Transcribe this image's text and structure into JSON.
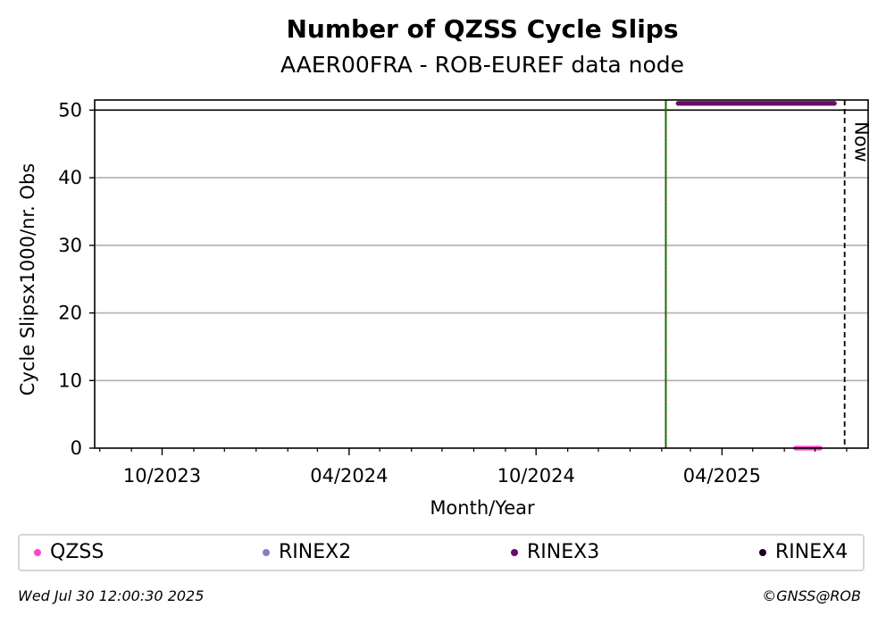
{
  "chart_data": {
    "type": "scatter",
    "title": "Number of QZSS Cycle Slips",
    "subtitle": "AAER00FRA - ROB-EUREF data node",
    "xlabel": "Month/Year",
    "ylabel": "Cycle Slipsx1000/nr. Obs",
    "xlim": [
      "2023-07-27",
      "2025-08-22"
    ],
    "ylim": [
      0,
      51.5
    ],
    "y_ticks": [
      0,
      10,
      20,
      30,
      40,
      50
    ],
    "x_ticks": [
      {
        "date": "2023-10-01",
        "label": "10/2023"
      },
      {
        "date": "2024-04-01",
        "label": "04/2024"
      },
      {
        "date": "2024-10-01",
        "label": "10/2024"
      },
      {
        "date": "2025-04-01",
        "label": "04/2025"
      }
    ],
    "x_minor_ticks": [
      "2023-08-01",
      "2023-09-01",
      "2023-11-01",
      "2023-12-01",
      "2024-01-01",
      "2024-02-01",
      "2024-03-01",
      "2024-05-01",
      "2024-06-01",
      "2024-07-01",
      "2024-08-01",
      "2024-09-01",
      "2024-11-01",
      "2024-12-01",
      "2025-01-01",
      "2025-02-01",
      "2025-03-01",
      "2025-05-01",
      "2025-06-01",
      "2025-07-01",
      "2025-08-01"
    ],
    "grid": "horizontal",
    "reference_hline": 50,
    "vertical_marker": {
      "date": "2025-02-05",
      "colors": [
        "#008000",
        "#cc0000"
      ]
    },
    "now_line": {
      "date": "2025-07-30",
      "label": "Now"
    },
    "series": [
      {
        "name": "QZSS",
        "color": "#ff44cc",
        "x_range": [
          "2025-06-12",
          "2025-07-06"
        ],
        "y": 0
      },
      {
        "name": "RINEX2",
        "color": "#8080c0",
        "x_range": [],
        "y": null
      },
      {
        "name": "RINEX3",
        "color": "#6a0a6a",
        "x_range": [
          "2025-02-17",
          "2025-07-20"
        ],
        "y": 51
      },
      {
        "name": "RINEX4",
        "color": "#1a0020",
        "x_range": [],
        "y": null
      }
    ],
    "legend_position": "bottom"
  },
  "footer": {
    "timestamp": "Wed Jul 30 12:00:30 2025",
    "copyright": "©GNSS@ROB"
  }
}
